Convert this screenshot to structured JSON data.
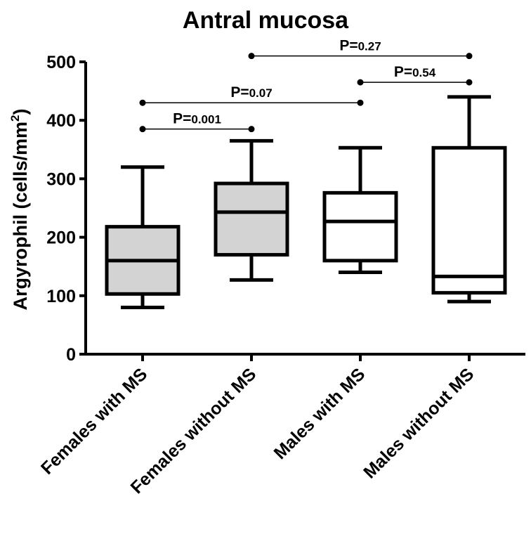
{
  "chart_data": {
    "type": "box",
    "title": "Antral mucosa",
    "xlabel": "",
    "ylabel": "Argyrophil (cells/mm²)",
    "ylabel_parts": {
      "main": "Argyrophil (cells/mm",
      "sup": "2",
      "close": ")"
    },
    "ylim": [
      0,
      500
    ],
    "yticks": [
      0,
      100,
      200,
      300,
      400,
      500
    ],
    "categories": [
      "Females with MS",
      "Females without MS",
      "Males with MS",
      "Males without MS"
    ],
    "boxes": [
      {
        "category": "Females with MS",
        "min": 80,
        "q1": 103,
        "median": 160,
        "q3": 218,
        "max": 320,
        "fill": "#d3d3d3"
      },
      {
        "category": "Females without MS",
        "min": 127,
        "q1": 170,
        "median": 243,
        "q3": 292,
        "max": 365,
        "fill": "#d3d3d3"
      },
      {
        "category": "Males with MS",
        "min": 140,
        "q1": 160,
        "median": 227,
        "q3": 276,
        "max": 353,
        "fill": "#ffffff"
      },
      {
        "category": "Males without MS",
        "min": 90,
        "q1": 105,
        "median": 133,
        "q3": 353,
        "max": 440,
        "fill": "#ffffff"
      }
    ],
    "comparisons": [
      {
        "from": 0,
        "to": 1,
        "y": 385,
        "label_prefix": "P=",
        "label_value": "0.001"
      },
      {
        "from": 0,
        "to": 2,
        "y": 430,
        "label_prefix": "P=",
        "label_value": "0.07"
      },
      {
        "from": 2,
        "to": 3,
        "y": 465,
        "label_prefix": "P=",
        "label_value": "0.54"
      },
      {
        "from": 1,
        "to": 3,
        "y": 510,
        "label_prefix": "P=",
        "label_value": "0.27"
      }
    ],
    "grid": false,
    "legend": "none"
  }
}
